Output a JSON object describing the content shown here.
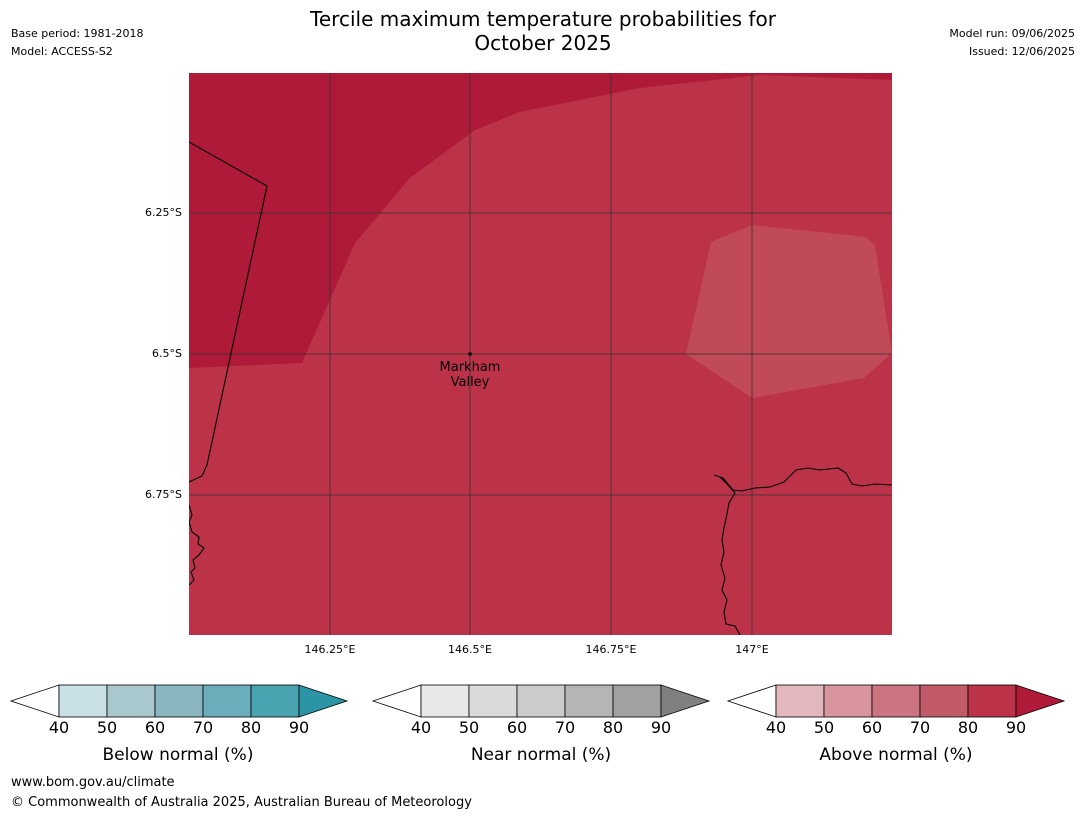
{
  "title": {
    "line1": "Tercile maximum temperature probabilities for",
    "line2": "October 2025"
  },
  "meta_left": {
    "base_period": "Base period: 1981-2018",
    "model": "Model: ACCESS-S2"
  },
  "meta_right": {
    "model_run": "Model run: 09/06/2025",
    "issued": "Issued: 12/06/2025"
  },
  "map": {
    "lat_labels": [
      "6.25°S",
      "6.5°S",
      "6.75°S"
    ],
    "lon_labels": [
      "146.25°E",
      "146.5°E",
      "146.75°E",
      "147°E"
    ],
    "place": {
      "line1": "Markham",
      "line2": "Valley",
      "lat": -6.5,
      "lon": 146.5
    },
    "colors": {
      "above_90": "#AE1A38",
      "above_80": "#BC3349",
      "above_70_80": "#C04A57",
      "grid": "#333333",
      "coast": "#000000"
    }
  },
  "colorbars": [
    {
      "title": "Below normal (%)",
      "ticks": [
        "40",
        "50",
        "60",
        "70",
        "80",
        "90"
      ],
      "colors": [
        "#C9E0E5",
        "#A8C8CE",
        "#8AB6C2",
        "#6AAEBB",
        "#4AA3B0",
        "#2B95A6"
      ]
    },
    {
      "title": "Near normal (%)",
      "ticks": [
        "40",
        "50",
        "60",
        "70",
        "80",
        "90"
      ],
      "colors": [
        "#E8E8E8",
        "#DADADA",
        "#CBCBCB",
        "#B5B5B5",
        "#A1A1A1",
        "#808080"
      ]
    },
    {
      "title": "Above normal (%)",
      "ticks": [
        "40",
        "50",
        "60",
        "70",
        "80",
        "90"
      ],
      "colors": [
        "#E2B7BD",
        "#D8959D",
        "#CC7580",
        "#C25A69",
        "#BC3349",
        "#AE1A38"
      ]
    }
  ],
  "footer": {
    "url": "www.bom.gov.au/climate",
    "copyright": "© Commonwealth of Australia 2025, Australian Bureau of Meteorology"
  }
}
